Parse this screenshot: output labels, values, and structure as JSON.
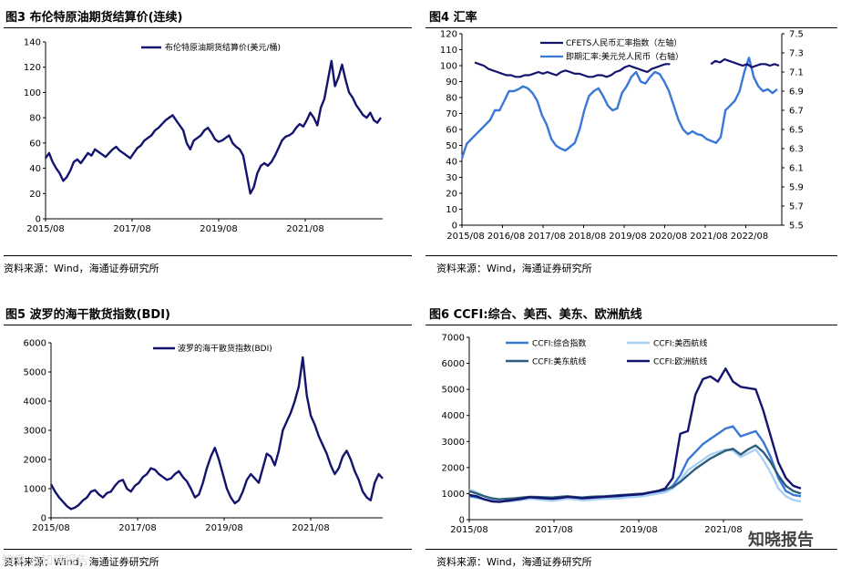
{
  "panels": [
    {
      "label": "图3 布伦特原油期货结算价(连续)",
      "source": "资料来源：Wind，海通证券研究所"
    },
    {
      "label": "图4 汇率",
      "source": "资料来源：Wind，海通证券研究所"
    },
    {
      "label": "图5 波罗的海干散货指数(BDI)",
      "source": "资料来源：Wind，海通证券研究所"
    },
    {
      "label": "图6 CCFI:综合、美西、美东、欧洲航线",
      "source": "资料来源：Wind，海通证券研究所"
    }
  ],
  "watermark": "知晓报告",
  "watermark2": "知乎 @知晓报告",
  "chart_data": [
    {
      "type": "line",
      "title": "图3 布伦特原油期货结算价(连续)",
      "x_ticks": [
        "2015/08",
        "2017/08",
        "2019/08",
        "2021/08"
      ],
      "y_ticks": [
        0,
        20,
        40,
        60,
        80,
        100,
        120,
        140
      ],
      "ylim": [
        0,
        140
      ],
      "color": "#14146e",
      "series": [
        {
          "name": "布伦特原油期货结算价(美元/桶)",
          "values": [
            48,
            52,
            45,
            40,
            36,
            30,
            33,
            38,
            45,
            47,
            44,
            48,
            52,
            50,
            55,
            53,
            51,
            49,
            52,
            55,
            57,
            54,
            52,
            50,
            48,
            52,
            56,
            58,
            62,
            64,
            66,
            70,
            72,
            75,
            78,
            80,
            82,
            78,
            74,
            70,
            60,
            55,
            62,
            64,
            66,
            70,
            72,
            68,
            63,
            61,
            62,
            64,
            66,
            60,
            57,
            55,
            50,
            35,
            20,
            25,
            36,
            42,
            44,
            42,
            45,
            50,
            56,
            62,
            65,
            66,
            68,
            72,
            75,
            73,
            78,
            84,
            80,
            74,
            88,
            95,
            110,
            125,
            105,
            112,
            122,
            110,
            100,
            96,
            90,
            86,
            82,
            80,
            84,
            78,
            76,
            80
          ]
        }
      ]
    },
    {
      "type": "line",
      "title": "图4 汇率",
      "x_ticks": [
        "2015/08",
        "2016/08",
        "2017/08",
        "2018/08",
        "2019/08",
        "2020/08",
        "2021/08",
        "2022/08"
      ],
      "y_ticks_left": [
        0,
        10,
        20,
        30,
        40,
        50,
        60,
        70,
        80,
        90,
        100,
        110,
        120
      ],
      "y_ticks_right": [
        5.5,
        5.7,
        5.9,
        6.1,
        6.3,
        6.5,
        6.7,
        6.9,
        7.1,
        7.3,
        7.5
      ],
      "ylim_left": [
        0,
        120
      ],
      "ylim_right": [
        5.5,
        7.5
      ],
      "series": [
        {
          "name": "CFETS人民币汇率指数（左轴）",
          "axis": "left",
          "color": "#14146e",
          "values": [
            102,
            101,
            100,
            98,
            97,
            96,
            95,
            94,
            94,
            93,
            93,
            94,
            94,
            95,
            96,
            95,
            96,
            95,
            94,
            96,
            97,
            96,
            95,
            95,
            94,
            93,
            93,
            94,
            94,
            93,
            94,
            96,
            97,
            99,
            100,
            99,
            98,
            97,
            96,
            98,
            99,
            100,
            101,
            101,
            null,
            null,
            null,
            null,
            null,
            null,
            null,
            null,
            101,
            103,
            102,
            104,
            103,
            102,
            101,
            100,
            101,
            99,
            100,
            101,
            101,
            100,
            101,
            100
          ]
        },
        {
          "name": "即期汇率:美元兑人民币（右轴）",
          "axis": "right",
          "color": "#3a78d8",
          "values": [
            6.2,
            6.35,
            6.4,
            6.45,
            6.5,
            6.55,
            6.6,
            6.7,
            6.7,
            6.8,
            6.9,
            6.9,
            6.92,
            6.95,
            6.93,
            6.88,
            6.8,
            6.65,
            6.55,
            6.4,
            6.33,
            6.3,
            6.28,
            6.32,
            6.36,
            6.5,
            6.7,
            6.85,
            6.9,
            6.93,
            6.85,
            6.75,
            6.7,
            6.72,
            6.88,
            6.95,
            7.05,
            7.1,
            7.0,
            6.98,
            7.05,
            7.1,
            7.08,
            7.0,
            6.9,
            6.75,
            6.6,
            6.5,
            6.45,
            6.48,
            6.45,
            6.44,
            6.4,
            6.38,
            6.36,
            6.42,
            6.7,
            6.75,
            6.8,
            6.9,
            7.1,
            7.25,
            7.05,
            6.95,
            6.9,
            6.92,
            6.88,
            6.92
          ]
        }
      ]
    },
    {
      "type": "line",
      "title": "图5 波罗的海干散货指数(BDI)",
      "x_ticks": [
        "2015/08",
        "2017/08",
        "2019/08",
        "2021/08"
      ],
      "y_ticks": [
        0,
        1000,
        2000,
        3000,
        4000,
        5000,
        6000
      ],
      "ylim": [
        0,
        6000
      ],
      "color": "#14146e",
      "series": [
        {
          "name": "波罗的海干散货指数(BDI)",
          "values": [
            1150,
            900,
            700,
            550,
            400,
            300,
            350,
            450,
            600,
            700,
            900,
            950,
            800,
            700,
            850,
            900,
            1100,
            1250,
            1300,
            1000,
            900,
            1100,
            1200,
            1400,
            1500,
            1700,
            1650,
            1500,
            1400,
            1300,
            1350,
            1500,
            1600,
            1400,
            1250,
            1000,
            700,
            800,
            1200,
            1700,
            2100,
            2400,
            2000,
            1500,
            1000,
            700,
            500,
            600,
            900,
            1300,
            1500,
            1350,
            1200,
            1700,
            2200,
            2100,
            1800,
            2300,
            3000,
            3300,
            3600,
            4000,
            4500,
            5500,
            4200,
            3500,
            3200,
            2800,
            2500,
            2200,
            1800,
            1500,
            1700,
            2100,
            2300,
            2000,
            1600,
            1300,
            900,
            700,
            600,
            1200,
            1500,
            1350
          ]
        }
      ]
    },
    {
      "type": "line",
      "title": "图6 CCFI:综合、美西、美东、欧洲航线",
      "x_ticks": [
        "2015/08",
        "2017/08",
        "2019/08",
        "2021/08"
      ],
      "y_ticks": [
        0,
        1000,
        2000,
        3000,
        4000,
        5000,
        6000,
        7000
      ],
      "ylim": [
        0,
        7000
      ],
      "series": [
        {
          "name": "CCFI:综合指数",
          "color": "#3a78d8",
          "values": [
            900,
            850,
            780,
            720,
            700,
            740,
            780,
            800,
            840,
            830,
            820,
            800,
            820,
            850,
            830,
            800,
            820,
            830,
            850,
            860,
            880,
            900,
            920,
            950,
            1000,
            1050,
            1100,
            1300,
            1700,
            2300,
            2600,
            2900,
            3100,
            3300,
            3500,
            3580,
            3200,
            3300,
            3400,
            3000,
            2400,
            1600,
            1100,
            950,
            900
          ]
        },
        {
          "name": "CCFI:美西航线",
          "color": "#a9d1f5",
          "values": [
            1150,
            1050,
            900,
            800,
            750,
            700,
            720,
            760,
            800,
            780,
            750,
            720,
            760,
            800,
            780,
            740,
            760,
            780,
            800,
            810,
            820,
            850,
            870,
            900,
            950,
            1000,
            1050,
            1200,
            1500,
            1900,
            2100,
            2300,
            2500,
            2600,
            2700,
            2650,
            2400,
            2550,
            2700,
            2300,
            1800,
            1200,
            900,
            750,
            700
          ]
        },
        {
          "name": "CCFI:美东航线",
          "color": "#2c5d7c",
          "values": [
            1100,
            1000,
            900,
            820,
            780,
            800,
            820,
            850,
            880,
            870,
            860,
            850,
            880,
            900,
            870,
            850,
            880,
            890,
            900,
            920,
            940,
            960,
            980,
            1000,
            1050,
            1100,
            1150,
            1250,
            1450,
            1700,
            1950,
            2150,
            2350,
            2500,
            2650,
            2720,
            2500,
            2700,
            2850,
            2600,
            2200,
            1700,
            1300,
            1100,
            1000
          ]
        },
        {
          "name": "CCFI:欧洲航线",
          "color": "#14146e",
          "values": [
            950,
            900,
            780,
            700,
            680,
            720,
            760,
            800,
            860,
            840,
            820,
            800,
            830,
            870,
            850,
            820,
            840,
            860,
            880,
            900,
            920,
            940,
            960,
            980,
            1050,
            1100,
            1200,
            1600,
            3300,
            3400,
            4800,
            5400,
            5500,
            5300,
            5800,
            5300,
            5100,
            5050,
            5000,
            4200,
            3200,
            2200,
            1600,
            1300,
            1200
          ]
        }
      ]
    }
  ]
}
